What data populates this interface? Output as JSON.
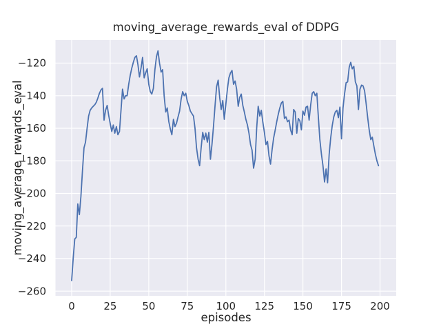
{
  "chart_data": {
    "type": "line",
    "title": "moving_average_rewards_eval of DDPG",
    "xlabel": "episodes",
    "ylabel": "moving_average_rewards_eval",
    "grid": true,
    "legend": false,
    "xlim": [
      -10.5,
      210.5
    ],
    "ylim": [
      -262.9,
      -105.8
    ],
    "x_ticks": {
      "values": [
        0,
        25,
        50,
        75,
        100,
        125,
        150,
        175,
        200
      ],
      "labels": [
        "0",
        "25",
        "50",
        "75",
        "100",
        "125",
        "150",
        "175",
        "200"
      ]
    },
    "y_ticks": {
      "values": [
        -120,
        -140,
        -160,
        -180,
        -200,
        -220,
        -240,
        -260
      ],
      "labels": [
        "−120",
        "−140",
        "−160",
        "−180",
        "−200",
        "−220",
        "−240",
        "−260"
      ]
    },
    "colors": {
      "line": "#4C72B0",
      "plot_bg": "#EAEAF2",
      "grid": "#FFFFFF",
      "text": "#262626",
      "figure_bg": "#FFFFFF"
    },
    "series": [
      {
        "name": "moving_average_rewards_eval",
        "x_start": 0,
        "x_step": 1,
        "n_points": 200,
        "y": [
          -253.5,
          -240,
          -228,
          -227,
          -206.5,
          -213,
          -202,
          -186,
          -172,
          -168.5,
          -160,
          -152.5,
          -149,
          -147.5,
          -146.5,
          -145.5,
          -144,
          -141.5,
          -138.5,
          -136.5,
          -135.5,
          -155,
          -149,
          -146,
          -152,
          -157,
          -162,
          -158,
          -163,
          -159,
          -164,
          -162,
          -149,
          -136,
          -142,
          -140,
          -140,
          -133,
          -127.5,
          -123,
          -119.5,
          -116.5,
          -115.5,
          -121,
          -128.5,
          -123,
          -116.5,
          -129,
          -126,
          -123.5,
          -133,
          -137.5,
          -139,
          -135.5,
          -124,
          -116,
          -112.5,
          -120,
          -125.5,
          -124,
          -140,
          -150,
          -147.5,
          -156,
          -160.5,
          -164,
          -154.5,
          -159,
          -157,
          -153,
          -149.5,
          -142,
          -137.5,
          -140,
          -138.5,
          -143.5,
          -146,
          -149.5,
          -151,
          -152.5,
          -160,
          -172,
          -179,
          -183,
          -172,
          -162.5,
          -167,
          -163,
          -168.5,
          -162.5,
          -179,
          -170,
          -159,
          -146,
          -134.5,
          -130.5,
          -141,
          -148.5,
          -143,
          -154.5,
          -145,
          -136,
          -129,
          -126,
          -124.5,
          -133,
          -131,
          -136,
          -146.5,
          -141,
          -139,
          -146,
          -150,
          -154.5,
          -158,
          -163,
          -170,
          -173.5,
          -184.5,
          -179,
          -160,
          -146.5,
          -152.5,
          -149,
          -156.5,
          -162.5,
          -170,
          -168,
          -177,
          -182,
          -173,
          -166,
          -161,
          -156,
          -151.5,
          -147.5,
          -144.5,
          -143.5,
          -154,
          -153,
          -156,
          -155,
          -161,
          -164,
          -148.5,
          -150,
          -163,
          -154,
          -155.5,
          -161,
          -149.5,
          -152,
          -147,
          -146.5,
          -155,
          -146,
          -138.5,
          -137.5,
          -140,
          -138.5,
          -153,
          -167,
          -176,
          -183,
          -193,
          -185,
          -193.5,
          -176,
          -166,
          -158.5,
          -153,
          -150,
          -149,
          -153.5,
          -147,
          -166.5,
          -147.5,
          -139,
          -132,
          -131.5,
          -122.5,
          -119.5,
          -123.5,
          -122,
          -131.5,
          -134,
          -148.5,
          -136,
          -133.5,
          -134,
          -137,
          -145,
          -153.5,
          -161,
          -167,
          -165.5,
          -171,
          -176,
          -180,
          -183
        ]
      }
    ]
  }
}
